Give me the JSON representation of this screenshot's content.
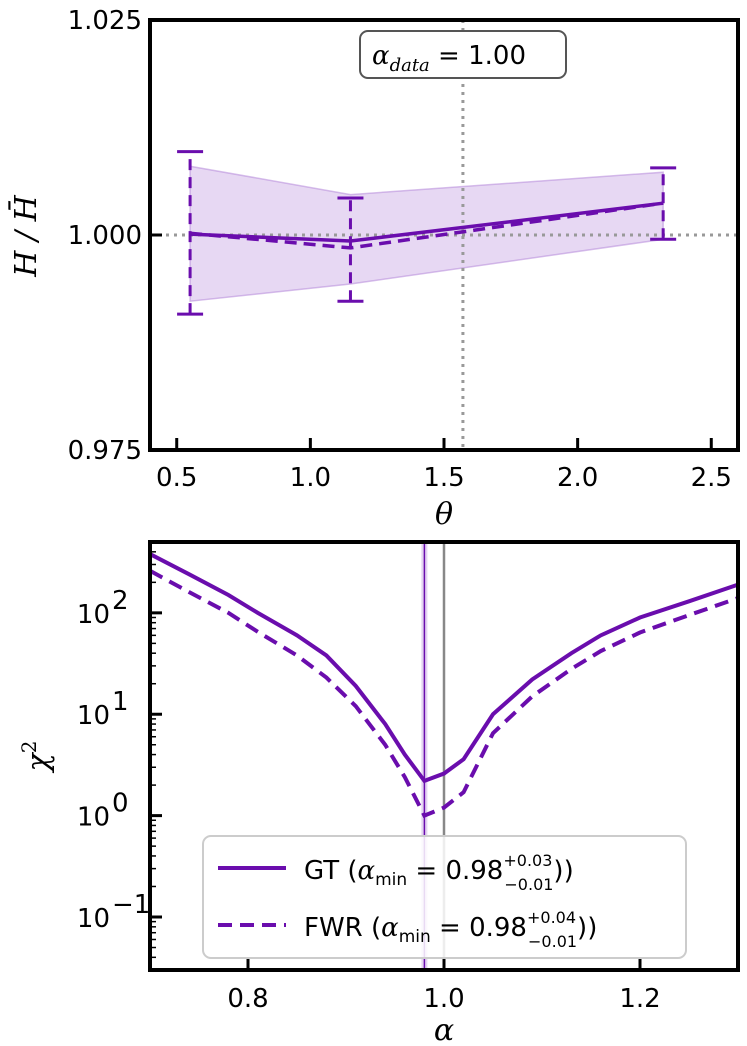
{
  "chart_data": [
    {
      "type": "line",
      "panel": "top",
      "xlabel": "θ",
      "ylabel": "H / H̄",
      "xlim": [
        0.4,
        2.6
      ],
      "ylim": [
        0.975,
        1.025
      ],
      "xticks": [
        0.5,
        1.0,
        1.5,
        2.0,
        2.5
      ],
      "xtick_labels": [
        "0.5",
        "1.0",
        "1.5",
        "2.0",
        "2.5"
      ],
      "yticks": [
        0.975,
        1.0,
        1.025
      ],
      "ytick_labels": [
        "0.975",
        "1.000",
        "1.025"
      ],
      "annotation": {
        "main": "α",
        "sub": "data",
        "rest": " = 1.00"
      },
      "reference_lines": {
        "vertical_x": 1.5708,
        "horizontal_y": 1.0
      },
      "x": [
        0.55,
        1.15,
        2.32
      ],
      "series": [
        {
          "style": "solid",
          "values": [
            1.0001,
            0.9993,
            1.0037
          ],
          "color": "#6a0dad"
        },
        {
          "style": "dashed",
          "values": [
            1.0002,
            0.9985,
            1.0037
          ],
          "color": "#6a0dad",
          "errors": [
            [
              0.9908,
              1.0097
            ],
            [
              0.9923,
              1.0043
            ],
            [
              0.9995,
              1.0078
            ]
          ]
        }
      ],
      "band": {
        "lower": [
          0.9923,
          0.9943,
          0.9995
        ],
        "upper": [
          1.008,
          1.0047,
          1.0073
        ],
        "color": "#b07fd8"
      },
      "grid": false
    },
    {
      "type": "line",
      "panel": "bottom",
      "xlabel": "α",
      "ylabel": "χ",
      "ylabel_sup": "2",
      "yscale": "log",
      "xlim": [
        0.7,
        1.3
      ],
      "ylim": [
        0.03,
        500
      ],
      "xticks": [
        0.8,
        1.0,
        1.2
      ],
      "xtick_labels": [
        "0.8",
        "1.0",
        "1.2"
      ],
      "yticks": [
        0.1,
        1,
        10,
        100
      ],
      "ytick_bases": [
        "10",
        "10",
        "10",
        "10"
      ],
      "ytick_exps": [
        "−1",
        "0",
        "1",
        "2"
      ],
      "reference_lines": {
        "vertical_x_true": 1.0,
        "vertical_x_min": 0.98
      },
      "x": [
        0.7,
        0.74,
        0.78,
        0.81,
        0.85,
        0.88,
        0.91,
        0.94,
        0.96,
        0.98,
        1.0,
        1.02,
        1.05,
        1.09,
        1.13,
        1.16,
        1.2,
        1.25,
        1.3
      ],
      "series": [
        {
          "style": "solid",
          "color": "#6a0dad",
          "values": [
            380,
            240,
            150,
            100,
            60,
            38,
            19,
            8,
            4,
            2.2,
            2.6,
            3.6,
            10,
            22,
            40,
            60,
            90,
            130,
            190
          ]
        },
        {
          "style": "dashed",
          "color": "#6a0dad",
          "values": [
            260,
            160,
            100,
            65,
            38,
            23,
            12,
            5,
            2.4,
            1.0,
            1.2,
            1.7,
            6.5,
            15,
            28,
            42,
            64,
            95,
            140
          ]
        }
      ],
      "legend": {
        "placement": "lower-center",
        "entries": [
          {
            "style": "solid",
            "prefix": "GT (",
            "alpha": "α",
            "sub": "min",
            "eq": " = 0.98",
            "sup": "+0.03",
            "low": "−0.01",
            "suffix": "))"
          },
          {
            "style": "dashed",
            "prefix": "FWR (",
            "alpha": "α",
            "sub": "min",
            "eq": " = 0.98",
            "sup": "+0.04",
            "low": "−0.01",
            "suffix": "))"
          }
        ]
      },
      "grid": false
    }
  ]
}
